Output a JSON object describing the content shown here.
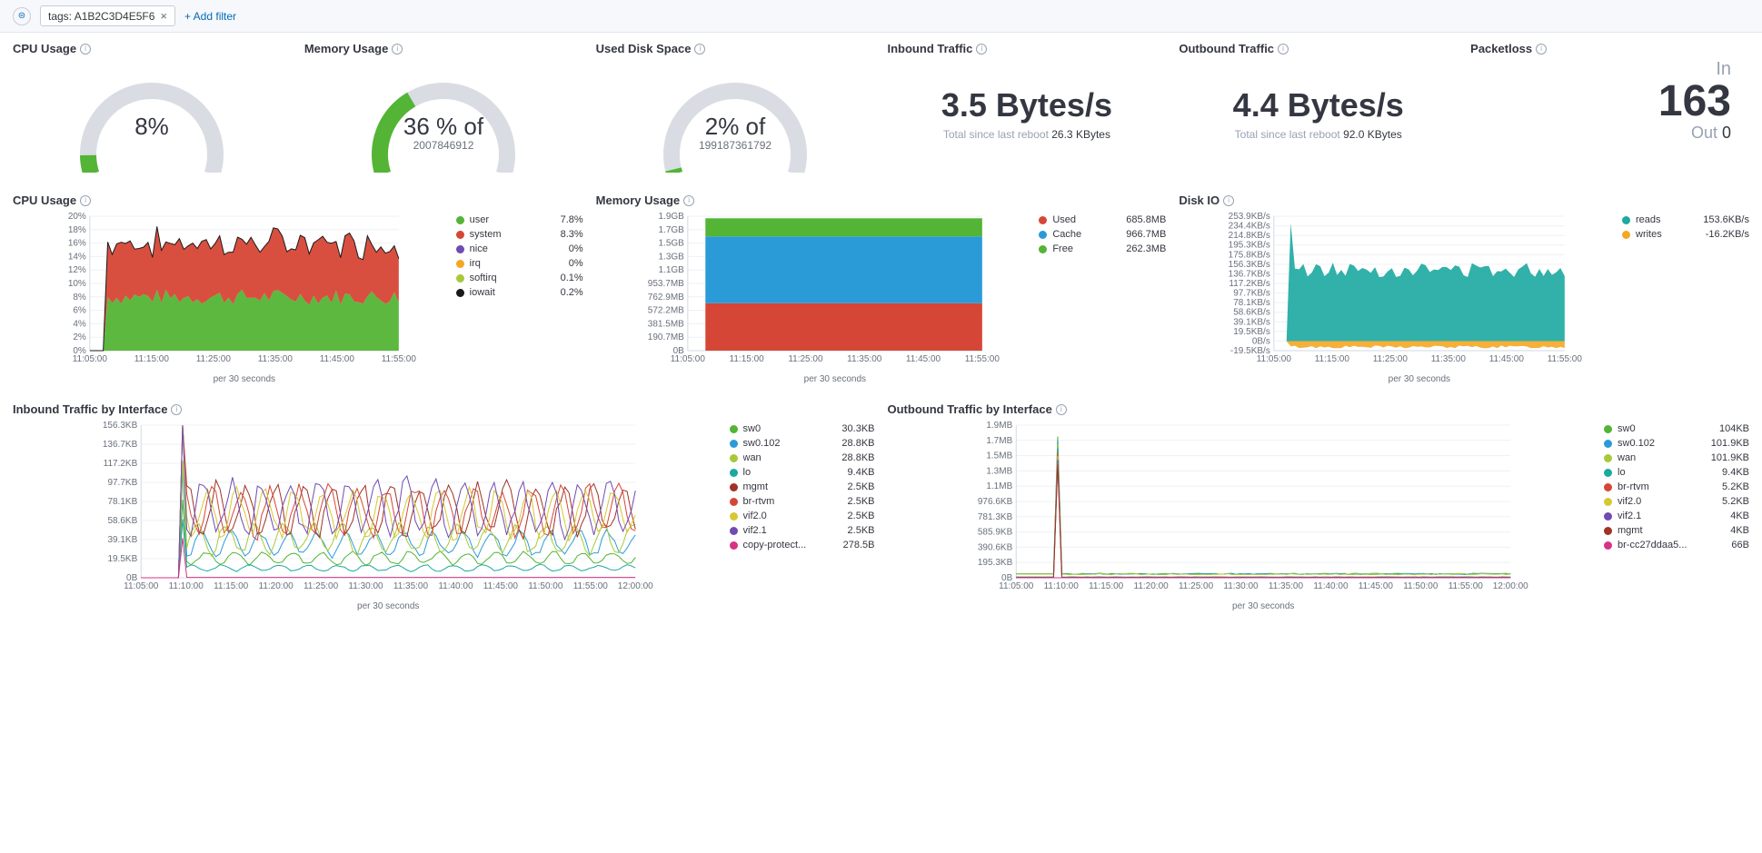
{
  "filter_bar": {
    "tag_label": "tags: A1B2C3D4E5F6",
    "add_filter": "+ Add filter"
  },
  "colors": {
    "gauge_bg": "#d9dde3",
    "gauge_fill": "#54b435",
    "green": "#54b435",
    "red": "#d64636",
    "blue": "#2b9bd8",
    "teal": "#1ba9a0",
    "purple": "#6f4bb2",
    "orange": "#f5a623",
    "black": "#1a1a1a",
    "yellow": "#d6c832",
    "magenta": "#d63384",
    "dark_green": "#6a9a2d",
    "lime": "#a8c93a",
    "dark_red": "#a03226"
  },
  "gauges": {
    "cpu": {
      "title": "CPU Usage",
      "value": 8,
      "label": "8%",
      "sublabel": ""
    },
    "mem": {
      "title": "Memory Usage",
      "value": 36,
      "label": "36 % of",
      "sublabel": "2007846912"
    },
    "disk": {
      "title": "Used Disk Space",
      "value": 2,
      "label": "2% of",
      "sublabel": "199187361792"
    }
  },
  "metrics": {
    "inbound": {
      "title": "Inbound Traffic",
      "value": "3.5 Bytes/s",
      "sub_prefix": "Total since last reboot",
      "sub_value": "26.3 KBytes"
    },
    "outbound": {
      "title": "Outbound Traffic",
      "value": "4.4 Bytes/s",
      "sub_prefix": "Total since last reboot",
      "sub_value": "92.0 KBytes"
    },
    "packetloss": {
      "title": "Packetloss",
      "in_label": "In",
      "in_value": "163",
      "out_label": "Out",
      "out_value": "0"
    }
  },
  "cpu_chart": {
    "title": "CPU Usage",
    "x_caption": "per 30 seconds",
    "yticks": [
      "0%",
      "2%",
      "4%",
      "6%",
      "8%",
      "10%",
      "12%",
      "14%",
      "16%",
      "18%",
      "20%"
    ],
    "xticks": [
      "11:05:00",
      "11:15:00",
      "11:25:00",
      "11:35:00",
      "11:45:00",
      "11:55:00"
    ],
    "ymax": 20,
    "series": [
      {
        "name": "user",
        "color": "#54b435",
        "value": "7.8%",
        "avg": 8,
        "noise": 1.2
      },
      {
        "name": "system",
        "color": "#d64636",
        "value": "8.3%",
        "avg": 8,
        "noise": 1.5
      },
      {
        "name": "nice",
        "color": "#6f4bb2",
        "value": "0%",
        "avg": 0,
        "noise": 0
      },
      {
        "name": "irq",
        "color": "#f5a623",
        "value": "0%",
        "avg": 0,
        "noise": 0
      },
      {
        "name": "softirq",
        "color": "#a8c93a",
        "value": "0.1%",
        "avg": 0.1,
        "noise": 0
      },
      {
        "name": "iowait",
        "color": "#1a1a1a",
        "value": "0.2%",
        "avg": 0.2,
        "noise": 0
      }
    ]
  },
  "mem_chart": {
    "title": "Memory Usage",
    "x_caption": "per 30 seconds",
    "yticks": [
      "0B",
      "190.7MB",
      "381.5MB",
      "572.2MB",
      "762.9MB",
      "953.7MB",
      "1.1GB",
      "1.3GB",
      "1.5GB",
      "1.7GB",
      "1.9GB"
    ],
    "xticks": [
      "11:05:00",
      "11:15:00",
      "11:25:00",
      "11:35:00",
      "11:45:00",
      "11:55:00"
    ],
    "ymax": 1945,
    "series": [
      {
        "name": "Used",
        "color": "#d64636",
        "value": "685.8MB",
        "h": 685.8
      },
      {
        "name": "Cache",
        "color": "#2b9bd8",
        "value": "966.7MB",
        "h": 966.7
      },
      {
        "name": "Free",
        "color": "#54b435",
        "value": "262.3MB",
        "h": 262.3
      }
    ]
  },
  "disk_chart": {
    "title": "Disk IO",
    "x_caption": "per 30 seconds",
    "yticks": [
      "-19.5KB/s",
      "0B/s",
      "19.5KB/s",
      "39.1KB/s",
      "58.6KB/s",
      "78.1KB/s",
      "97.7KB/s",
      "117.2KB/s",
      "136.7KB/s",
      "156.3KB/s",
      "175.8KB/s",
      "195.3KB/s",
      "214.8KB/s",
      "234.4KB/s",
      "253.9KB/s"
    ],
    "xticks": [
      "11:05:00",
      "11:15:00",
      "11:25:00",
      "11:35:00",
      "11:45:00",
      "11:55:00"
    ],
    "ymax": 253.9,
    "ymin": -19.5,
    "series": [
      {
        "name": "reads",
        "color": "#1ba9a0",
        "value": "153.6KB/s",
        "avg": 145,
        "spike": 240
      },
      {
        "name": "writes",
        "color": "#f5a623",
        "value": "-16.2KB/s",
        "avg": -12,
        "spike": -18
      }
    ]
  },
  "inbound_if": {
    "title": "Inbound Traffic by Interface",
    "x_caption": "per 30 seconds",
    "yticks": [
      "0B",
      "19.5KB",
      "39.1KB",
      "58.6KB",
      "78.1KB",
      "97.7KB",
      "117.2KB",
      "136.7KB",
      "156.3KB"
    ],
    "xticks": [
      "11:05:00",
      "11:10:00",
      "11:15:00",
      "11:20:00",
      "11:25:00",
      "11:30:00",
      "11:35:00",
      "11:40:00",
      "11:45:00",
      "11:50:00",
      "11:55:00",
      "12:00:00"
    ],
    "ymax": 156.3,
    "series": [
      {
        "name": "sw0",
        "color": "#54b435",
        "value": "30.3KB",
        "bias": 20,
        "amp": 6
      },
      {
        "name": "sw0.102",
        "color": "#2b9bd8",
        "value": "28.8KB",
        "bias": 35,
        "amp": 12
      },
      {
        "name": "wan",
        "color": "#a8c93a",
        "value": "28.8KB",
        "bias": 40,
        "amp": 14
      },
      {
        "name": "lo",
        "color": "#1ba9a0",
        "value": "9.4KB",
        "bias": 10,
        "amp": 3
      },
      {
        "name": "mgmt",
        "color": "#a03226",
        "value": "2.5KB",
        "bias": 70,
        "amp": 25
      },
      {
        "name": "br-rtvm",
        "color": "#d64636",
        "value": "2.5KB",
        "bias": 68,
        "amp": 24
      },
      {
        "name": "vif2.0",
        "color": "#d6c832",
        "value": "2.5KB",
        "bias": 66,
        "amp": 23
      },
      {
        "name": "vif2.1",
        "color": "#6f4bb2",
        "value": "2.5KB",
        "bias": 72,
        "amp": 26
      },
      {
        "name": "copy-protect...",
        "color": "#d63384",
        "value": "278.5B",
        "bias": 0.3,
        "amp": 0
      }
    ]
  },
  "outbound_if": {
    "title": "Outbound Traffic by Interface",
    "x_caption": "per 30 seconds",
    "yticks": [
      "0B",
      "195.3KB",
      "390.6KB",
      "585.9KB",
      "781.3KB",
      "976.6KB",
      "1.1MB",
      "1.3MB",
      "1.5MB",
      "1.7MB",
      "1.9MB"
    ],
    "xticks": [
      "11:05:00",
      "11:10:00",
      "11:15:00",
      "11:20:00",
      "11:25:00",
      "11:30:00",
      "11:35:00",
      "11:40:00",
      "11:45:00",
      "11:50:00",
      "11:55:00",
      "12:00:00"
    ],
    "ymax": 1945,
    "series": [
      {
        "name": "sw0",
        "color": "#54b435",
        "value": "104KB",
        "flat": 50,
        "spike": 1800
      },
      {
        "name": "sw0.102",
        "color": "#2b9bd8",
        "value": "101.9KB",
        "flat": 48,
        "spike": 1750
      },
      {
        "name": "wan",
        "color": "#a8c93a",
        "value": "101.9KB",
        "flat": 46,
        "spike": 1700
      },
      {
        "name": "lo",
        "color": "#1ba9a0",
        "value": "9.4KB",
        "flat": 10,
        "spike": 1650
      },
      {
        "name": "br-rtvm",
        "color": "#d64636",
        "value": "5.2KB",
        "flat": 6,
        "spike": 1600
      },
      {
        "name": "vif2.0",
        "color": "#d6c832",
        "value": "5.2KB",
        "flat": 5,
        "spike": 1550
      },
      {
        "name": "vif2.1",
        "color": "#6f4bb2",
        "value": "4KB",
        "flat": 4,
        "spike": 1500
      },
      {
        "name": "mgmt",
        "color": "#a03226",
        "value": "4KB",
        "flat": 4,
        "spike": 1450
      },
      {
        "name": "br-cc27ddaa5...",
        "color": "#d63384",
        "value": "66B",
        "flat": 0.1,
        "spike": 0.1
      }
    ]
  }
}
